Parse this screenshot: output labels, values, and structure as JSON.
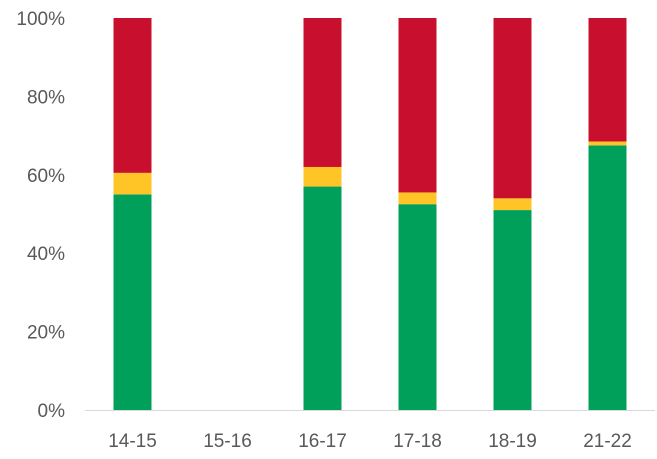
{
  "chart_data": {
    "type": "bar",
    "stacked": true,
    "percent": true,
    "categories": [
      "14-15",
      "15-16",
      "16-17",
      "17-18",
      "18-19",
      "21-22"
    ],
    "series": [
      {
        "color": "#00A05A",
        "values": [
          55,
          null,
          57,
          52.5,
          51,
          67.5
        ]
      },
      {
        "color": "#FFC425",
        "values": [
          5.5,
          null,
          5,
          3,
          3,
          1
        ]
      },
      {
        "color": "#C8102E",
        "values": [
          39.5,
          null,
          38,
          44.5,
          46,
          31.5
        ]
      }
    ],
    "ylim": [
      0,
      100
    ],
    "yticks": [
      "0%",
      "20%",
      "40%",
      "60%",
      "80%",
      "100%"
    ],
    "grid": false,
    "legend": "none"
  }
}
